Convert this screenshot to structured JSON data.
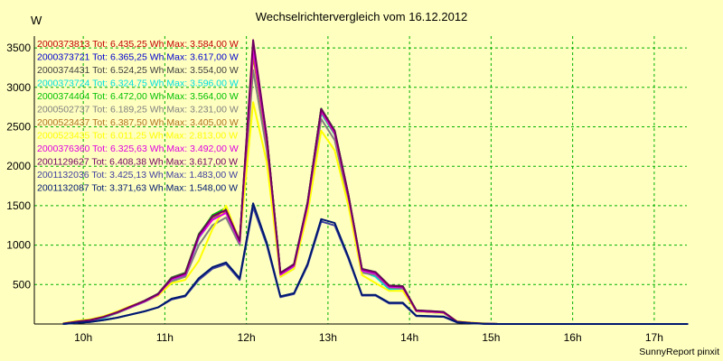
{
  "chart_data": {
    "type": "line",
    "title": "Wechselrichtervergleich vom 16.12.2012",
    "ylabel": "W",
    "credit": "SunnyReport pinxit",
    "ylim": [
      0,
      3650
    ],
    "yticks": [
      500,
      1000,
      1500,
      2000,
      2500,
      3000,
      3500
    ],
    "xlim": [
      9.4,
      17.4
    ],
    "xticks": [
      {
        "value": 10,
        "label": "10h"
      },
      {
        "value": 11,
        "label": "11h"
      },
      {
        "value": 12,
        "label": "12h"
      },
      {
        "value": 13,
        "label": "13h"
      },
      {
        "value": 14,
        "label": "14h"
      },
      {
        "value": 15,
        "label": "15h"
      },
      {
        "value": 16,
        "label": "16h"
      },
      {
        "value": 17,
        "label": "17h"
      }
    ],
    "grid": true,
    "legend_position": "top-left",
    "x": [
      9.75,
      9.917,
      10.083,
      10.25,
      10.417,
      10.583,
      10.75,
      10.917,
      11.083,
      11.25,
      11.417,
      11.583,
      11.75,
      11.917,
      12.083,
      12.25,
      12.417,
      12.583,
      12.75,
      12.917,
      13.083,
      13.25,
      13.417,
      13.583,
      13.75,
      13.917,
      14.083,
      14.25,
      14.417,
      14.583,
      14.75,
      14.917,
      15.083,
      15.25,
      15.417,
      15.583,
      15.75,
      15.917,
      16.083,
      16.25,
      16.417,
      16.583,
      16.75,
      16.917,
      17.083,
      17.25,
      17.417
    ],
    "series": [
      {
        "name": "2000373813",
        "label": "2000373813 Tot: 6.435,25 Wh Max: 3.584,00 W",
        "color": "#c00000",
        "values": [
          5,
          30,
          50,
          90,
          150,
          220,
          290,
          380,
          580,
          640,
          1120,
          1360,
          1440,
          1050,
          3520,
          2360,
          640,
          750,
          1530,
          2720,
          2440,
          1630,
          690,
          650,
          480,
          470,
          170,
          160,
          150,
          30,
          15,
          5,
          0,
          0,
          0,
          0,
          0,
          0,
          0,
          0,
          0,
          0,
          0,
          0,
          0,
          0,
          0
        ]
      },
      {
        "name": "2000373721",
        "label": "2000373721 Tot: 6.365,25 Wh Max: 3.617,00 W",
        "color": "#0000d0",
        "values": [
          5,
          25,
          45,
          85,
          145,
          215,
          285,
          370,
          570,
          630,
          1100,
          1340,
          1430,
          1040,
          3480,
          2340,
          630,
          740,
          1510,
          2690,
          2420,
          1610,
          680,
          640,
          470,
          460,
          165,
          155,
          145,
          28,
          15,
          5,
          0,
          0,
          0,
          0,
          0,
          0,
          0,
          0,
          0,
          0,
          0,
          0,
          0,
          0,
          0
        ]
      },
      {
        "name": "2000374431",
        "label": "2000374431 Tot: 6.524,25 Wh Max: 3.554,00 W",
        "color": "#404040",
        "values": [
          5,
          30,
          50,
          90,
          150,
          225,
          295,
          385,
          590,
          650,
          1140,
          1370,
          1450,
          1060,
          3540,
          2370,
          650,
          760,
          1540,
          2730,
          2450,
          1640,
          700,
          660,
          490,
          480,
          175,
          165,
          155,
          30,
          15,
          5,
          0,
          0,
          0,
          0,
          0,
          0,
          0,
          0,
          0,
          0,
          0,
          0,
          0,
          0,
          0
        ]
      },
      {
        "name": "2000373724",
        "label": "2000373724 Tot: 6.324,75 Wh Max: 3.596,00 W",
        "color": "#00e0e0",
        "values": [
          0,
          15,
          35,
          75,
          140,
          210,
          280,
          365,
          560,
          620,
          1090,
          1330,
          1420,
          1030,
          3470,
          2320,
          620,
          730,
          1500,
          2670,
          2400,
          1600,
          670,
          600,
          440,
          450,
          160,
          150,
          140,
          25,
          12,
          3,
          0,
          0,
          0,
          0,
          0,
          0,
          0,
          0,
          0,
          0,
          0,
          0,
          0,
          0,
          0
        ]
      },
      {
        "name": "2000374404",
        "label": "2000374404 Tot: 6.472,00 Wh Max: 3.564,00 W",
        "color": "#00c000",
        "values": [
          5,
          30,
          50,
          90,
          150,
          220,
          290,
          380,
          585,
          645,
          1130,
          1380,
          1470,
          1050,
          3530,
          2360,
          640,
          750,
          1530,
          2730,
          2450,
          1630,
          690,
          650,
          480,
          470,
          170,
          160,
          150,
          30,
          15,
          5,
          0,
          0,
          0,
          0,
          0,
          0,
          0,
          0,
          0,
          0,
          0,
          0,
          0,
          0,
          0
        ]
      },
      {
        "name": "2000502737",
        "label": "2000502737 Tot: 6.189,25 Wh Max: 3.231,00 W",
        "color": "#808080",
        "values": [
          5,
          25,
          45,
          85,
          140,
          210,
          280,
          360,
          540,
          600,
          1000,
          1250,
          1350,
          1000,
          3220,
          2200,
          600,
          700,
          1450,
          2600,
          2330,
          1560,
          650,
          620,
          460,
          450,
          160,
          150,
          140,
          28,
          14,
          5,
          0,
          0,
          0,
          0,
          0,
          0,
          0,
          0,
          0,
          0,
          0,
          0,
          0,
          0,
          0
        ]
      },
      {
        "name": "2000523437",
        "label": "2000523437 Tot: 6.387,50 Wh Max: 3.405,00 W",
        "color": "#b07020",
        "values": [
          5,
          28,
          48,
          88,
          148,
          218,
          288,
          375,
          575,
          635,
          1110,
          1350,
          1430,
          1040,
          3400,
          2300,
          630,
          740,
          1510,
          2690,
          2410,
          1610,
          680,
          645,
          475,
          465,
          168,
          158,
          148,
          30,
          15,
          5,
          0,
          0,
          0,
          0,
          0,
          0,
          0,
          0,
          0,
          0,
          0,
          0,
          0,
          0,
          0
        ]
      },
      {
        "name": "2000523435",
        "label": "2000523435 Tot: 6.011,25 Wh Max: 2.813,00 W",
        "color": "#ffff00",
        "values": [
          10,
          40,
          60,
          100,
          160,
          230,
          290,
          360,
          520,
          560,
          800,
          1200,
          1500,
          1050,
          2813,
          2050,
          600,
          700,
          1400,
          2450,
          2200,
          1500,
          620,
          520,
          420,
          420,
          160,
          150,
          140,
          35,
          20,
          8,
          0,
          0,
          0,
          0,
          0,
          0,
          0,
          0,
          0,
          0,
          0,
          0,
          0,
          0,
          0
        ]
      },
      {
        "name": "2000376360",
        "label": "2000376360 Tot: 6.325,63 Wh Max: 3.492,00 W",
        "color": "#e000e0",
        "values": [
          5,
          28,
          48,
          88,
          148,
          215,
          285,
          372,
          565,
          625,
          1100,
          1320,
          1410,
          1035,
          3490,
          2330,
          625,
          735,
          1505,
          2700,
          2420,
          1615,
          675,
          640,
          470,
          465,
          165,
          155,
          145,
          28,
          14,
          5,
          0,
          0,
          0,
          0,
          0,
          0,
          0,
          0,
          0,
          0,
          0,
          0,
          0,
          0,
          0
        ]
      },
      {
        "name": "2001129627",
        "label": "2001129627 Tot: 6.408,38 Wh Max: 3.617,00 W",
        "color": "#700060",
        "values": [
          5,
          30,
          50,
          90,
          150,
          222,
          292,
          380,
          580,
          640,
          1125,
          1365,
          1445,
          1055,
          3600,
          2370,
          645,
          755,
          1535,
          2725,
          2445,
          1635,
          695,
          655,
          485,
          475,
          172,
          162,
          152,
          30,
          15,
          5,
          0,
          0,
          0,
          0,
          0,
          0,
          0,
          0,
          0,
          0,
          0,
          0,
          0,
          0,
          0
        ]
      },
      {
        "name": "2001132036",
        "label": "2001132036 Tot: 3.425,13 Wh Max: 1.483,00 W",
        "color": "#4040a0",
        "values": [
          0,
          15,
          25,
          50,
          80,
          120,
          160,
          210,
          310,
          350,
          560,
          700,
          760,
          560,
          1483,
          1000,
          340,
          380,
          740,
          1300,
          1250,
          830,
          360,
          360,
          260,
          260,
          100,
          95,
          90,
          20,
          10,
          3,
          0,
          0,
          0,
          0,
          0,
          0,
          0,
          0,
          0,
          0,
          0,
          0,
          0,
          0,
          0
        ]
      },
      {
        "name": "2001132087",
        "label": "2001132087 Tot: 3.371,63 Wh Max: 1.548,00 W",
        "color": "#001870",
        "values": [
          0,
          15,
          25,
          50,
          80,
          120,
          160,
          210,
          320,
          360,
          580,
          720,
          780,
          580,
          1530,
          1030,
          350,
          390,
          760,
          1330,
          1280,
          850,
          370,
          370,
          270,
          270,
          105,
          100,
          95,
          22,
          10,
          3,
          0,
          0,
          0,
          0,
          0,
          0,
          0,
          0,
          0,
          0,
          0,
          0,
          0,
          0,
          0
        ]
      }
    ]
  }
}
